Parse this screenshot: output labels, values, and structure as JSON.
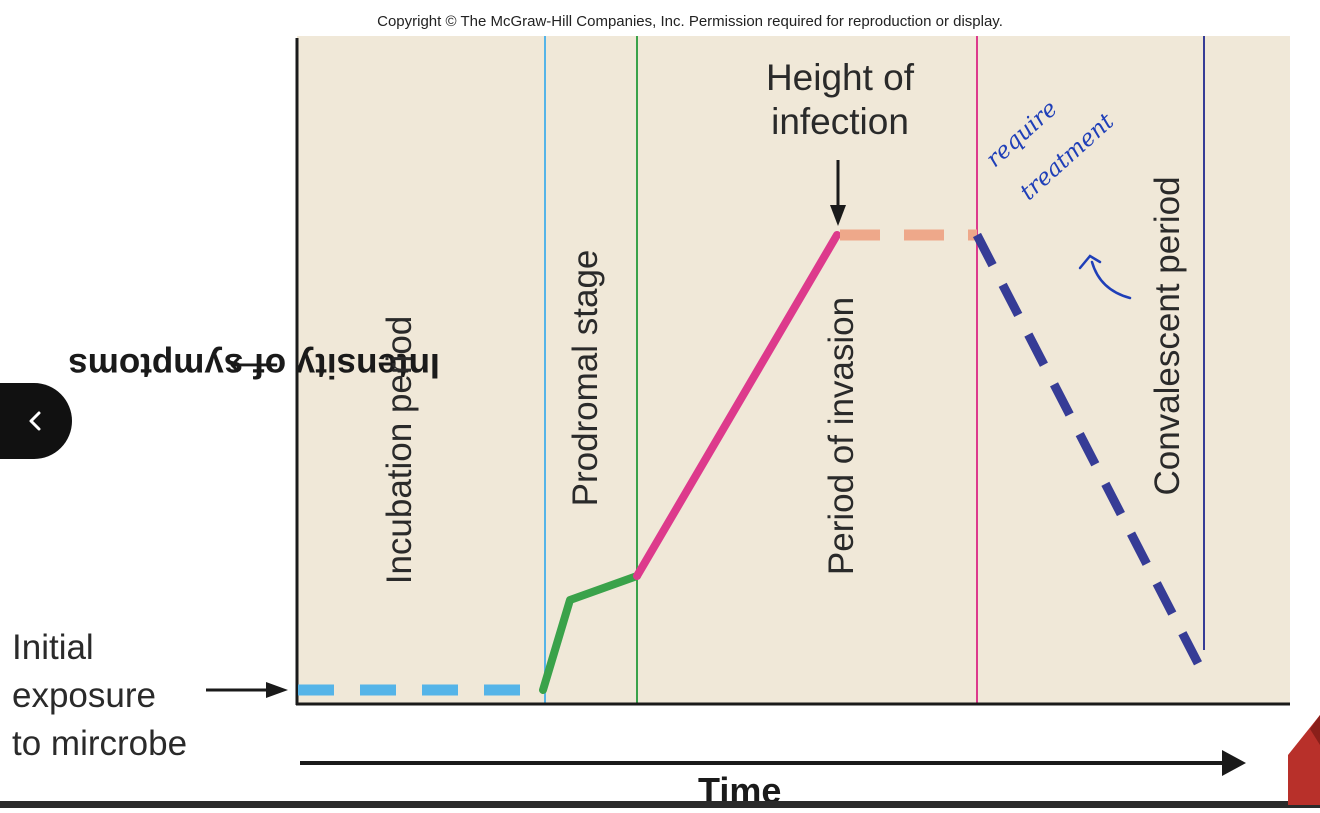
{
  "copyright": "Copyright © The McGraw-Hill Companies, Inc. Permission required for reproduction or display.",
  "y_axis_label": "Intensity of symptoms",
  "x_axis_label": "Time",
  "initial_exposure_label": [
    "Initial",
    "exposure",
    "to mircrobe"
  ],
  "stages": {
    "incubation": "Incubation period",
    "prodromal": "Prodromal stage",
    "invasion": "Period of invasion",
    "convalescent": "Convalescent period"
  },
  "height_of_infection": [
    "Height of",
    "infection"
  ],
  "handwritten_note": [
    "require",
    "treatment"
  ],
  "colors": {
    "panel_bg": "#f0e8d8",
    "incubation_line": "#55b4e8",
    "prodromal_line": "#3aa24a",
    "invasion_line": "#dd3a8c",
    "peak_line": "#eea88a",
    "decline_line": "#363c96",
    "handwriting": "#1f3fb8"
  },
  "nav": {
    "back_icon": "chevron-left-icon"
  }
}
